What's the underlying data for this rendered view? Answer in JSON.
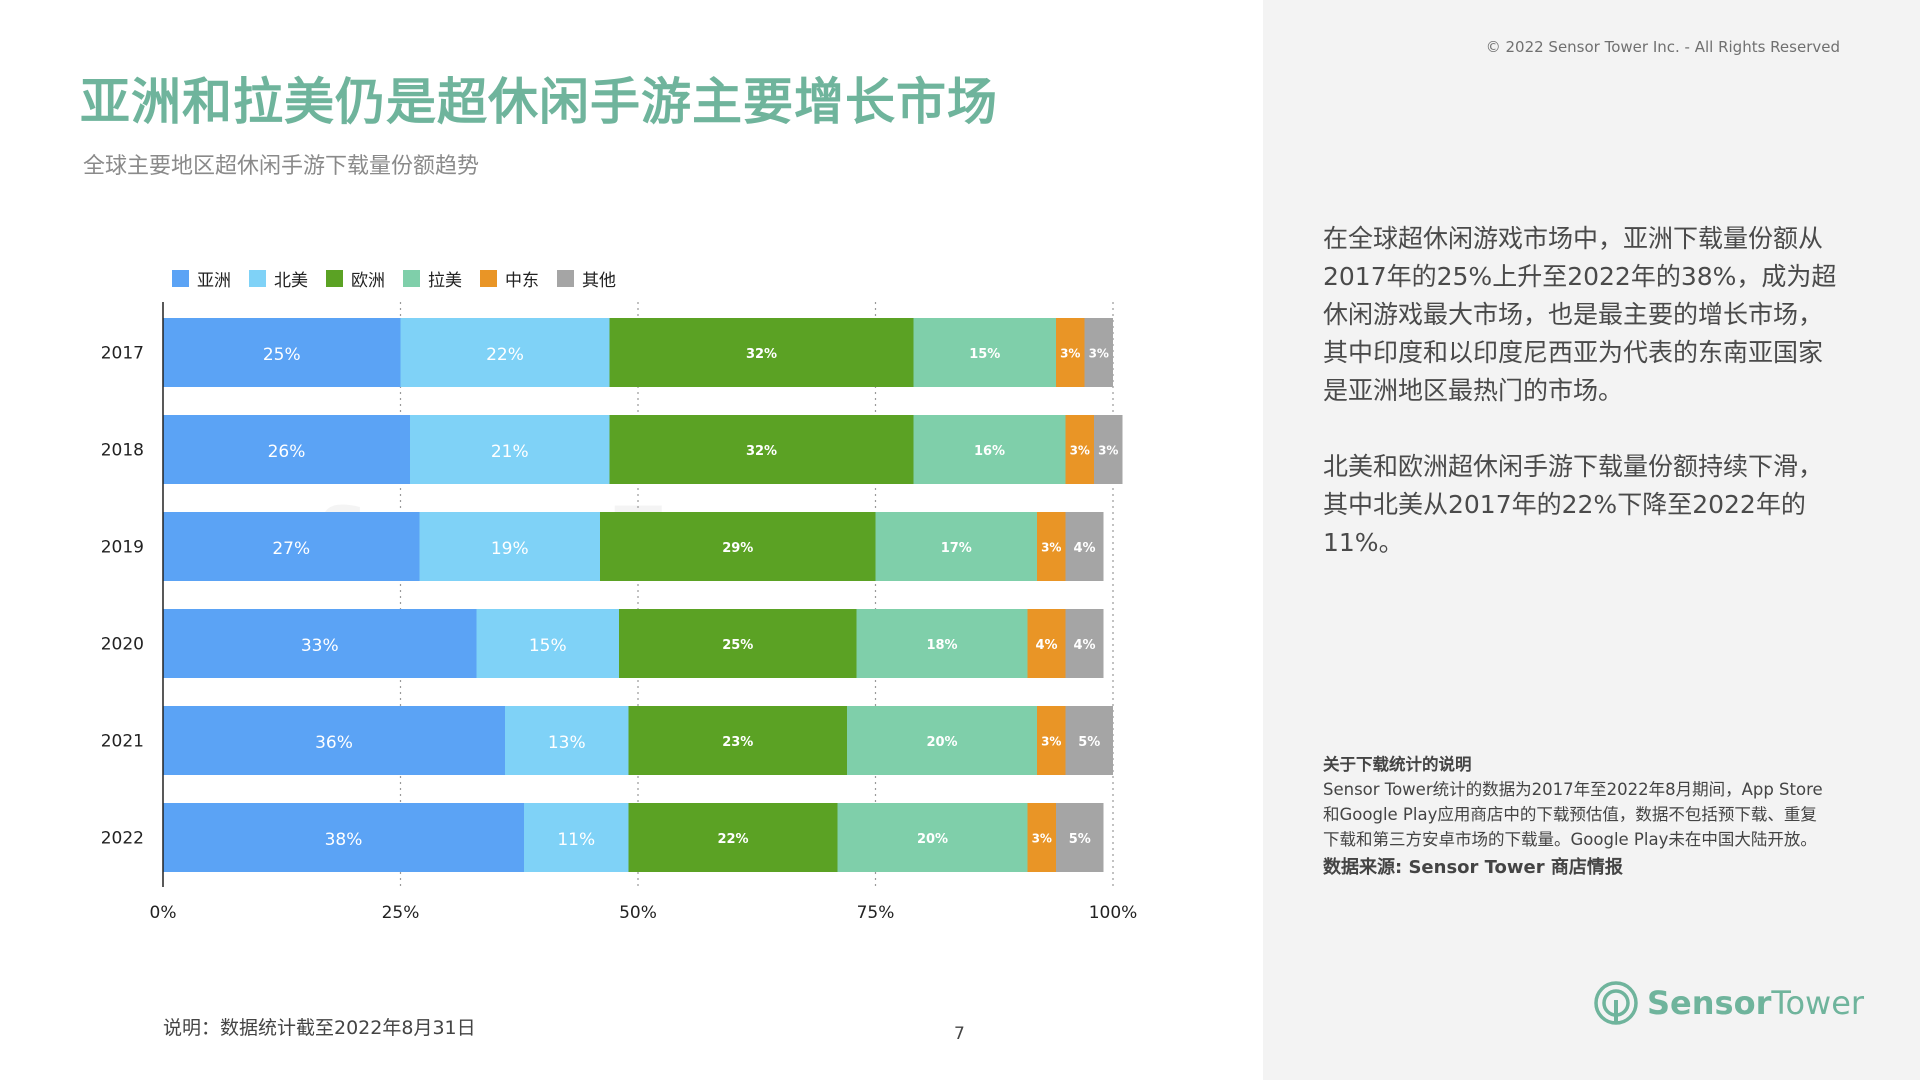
{
  "copyright": "© 2022 Sensor Tower Inc. - All Rights Reserved",
  "title": "亚洲和拉美仍是超休闲手游主要增长市场",
  "subtitle": "全球主要地区超休闲手游下载量份额趋势",
  "watermark": "Sensor Tower",
  "chart_data": {
    "type": "bar",
    "orientation": "horizontal",
    "stacked": true,
    "categories": [
      "2017",
      "2018",
      "2019",
      "2020",
      "2021",
      "2022"
    ],
    "series": [
      {
        "name": "亚洲",
        "color": "#5ba3f5",
        "values": [
          25,
          26,
          27,
          33,
          36,
          38
        ],
        "labels": [
          "25%",
          "26%",
          "27%",
          "33%",
          "36%",
          "38%"
        ]
      },
      {
        "name": "北美",
        "color": "#7fd2f7",
        "values": [
          22,
          21,
          19,
          15,
          13,
          11
        ],
        "labels": [
          "22%",
          "21%",
          "19%",
          "15%",
          "13%",
          "11%"
        ]
      },
      {
        "name": "欧洲",
        "color": "#5ba224",
        "values": [
          32,
          32,
          29,
          25,
          23,
          22
        ],
        "labels": [
          "32%",
          "32%",
          "29%",
          "25%",
          "23%",
          "22%"
        ]
      },
      {
        "name": "拉美",
        "color": "#7fcfaa",
        "values": [
          15,
          16,
          17,
          18,
          20,
          20
        ],
        "labels": [
          "15%",
          "16%",
          "17%",
          "18%",
          "20%",
          "20%"
        ]
      },
      {
        "name": "中东",
        "color": "#e99526",
        "values": [
          3,
          3,
          3,
          4,
          3,
          3
        ],
        "labels": [
          "3%",
          "3%",
          "3%",
          "4%",
          "3%",
          "3%"
        ]
      },
      {
        "name": "其他",
        "color": "#a5a5a5",
        "values": [
          3,
          3,
          4,
          4,
          5,
          5
        ],
        "labels": [
          "3%",
          "3%",
          "4%",
          "4%",
          "5%",
          "5%"
        ]
      }
    ],
    "xlim": [
      0,
      100
    ],
    "xticks": [
      "0%",
      "25%",
      "50%",
      "75%",
      "100%"
    ],
    "legend_position": "top-left",
    "grid": "vertical dotted"
  },
  "commentary": {
    "paragraph1": "在全球超休闲游戏市场中，亚洲下载量份额从2017年的25%上升至2022年的38%，成为超休闲游戏最大市场，也是最主要的增长市场，其中印度和以印度尼西亚为代表的东南亚国家是亚洲地区最热门的市场。",
    "paragraph2": "北美和欧洲超休闲手游下载量份额持续下滑，其中北美从2017年的22%下降至2022年的11%。"
  },
  "note": {
    "title": "关于下载统计的说明",
    "body": "Sensor Tower统计的数据为2017年至2022年8月期间，App Store和Google Play应用商店中的下载预估值，数据不包括预下载、重复下载和第三方安卓市场的下载量。Google Play未在中国大陆开放。",
    "source": "数据来源: Sensor Tower 商店情报"
  },
  "footnote": "说明：数据统计截至2022年8月31日",
  "page_number": "7",
  "brand": {
    "name_part1": "Sensor",
    "name_part2": "Tower",
    "logo_icon": "sensor-tower-logo-icon"
  }
}
